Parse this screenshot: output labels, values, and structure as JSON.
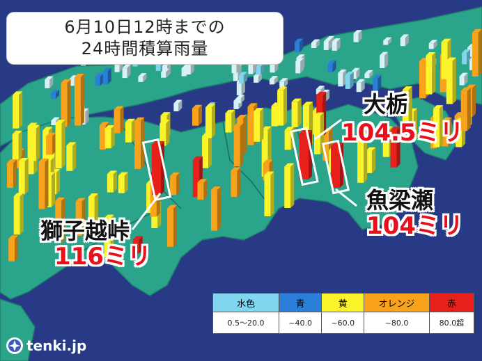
{
  "title": {
    "line1": "6月10日12時までの",
    "line2": "24時間積算雨量"
  },
  "callouts": [
    {
      "name": "大栃",
      "value": "104.5ミリ"
    },
    {
      "name": "魚梁瀬",
      "value": "104ミリ"
    },
    {
      "name": "獅子越峠",
      "value": "116ミリ"
    }
  ],
  "legend": [
    {
      "label": "水色",
      "range": "0.5〜20.0",
      "color": "#7fd6ee"
    },
    {
      "label": "青",
      "range": "~40.0",
      "color": "#2a7fd8"
    },
    {
      "label": "黄",
      "range": "~60.0",
      "color": "#fbf42b"
    },
    {
      "label": "オレンジ",
      "range": "~80.0",
      "color": "#f9a21b"
    },
    {
      "label": "赤",
      "range": "80.0超",
      "color": "#e8201c"
    }
  ],
  "colors": {
    "sea": "#283a86",
    "land": "#2aa48a",
    "land_edge": "#1f7f6c"
  },
  "logo": {
    "text": "tenki.jp",
    "icon": "tenki-logo-icon"
  }
}
